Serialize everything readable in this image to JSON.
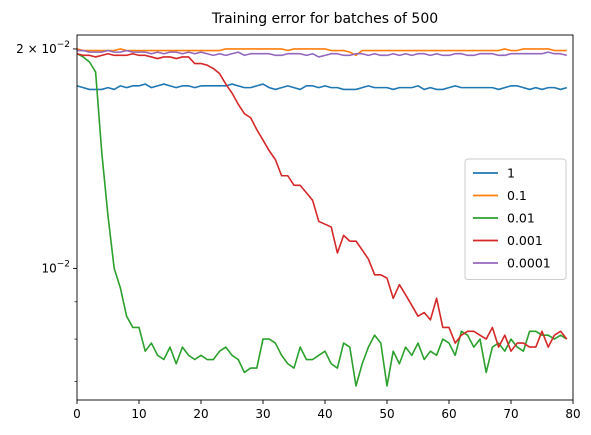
{
  "chart_data": {
    "type": "line",
    "title": "Training error for batches of 500",
    "xlabel": "",
    "ylabel": "",
    "xlim": [
      0,
      80
    ],
    "ylim": [
      0.0066,
      0.0209
    ],
    "yscale": "log",
    "xticks": [
      0,
      10,
      20,
      30,
      40,
      50,
      60,
      70,
      80
    ],
    "xtick_labels": [
      "0",
      "10",
      "20",
      "30",
      "40",
      "50",
      "60",
      "70",
      "80"
    ],
    "yticks": [
      {
        "value": 0.02,
        "base": "2 × 10",
        "exp": "−2"
      },
      {
        "value": 0.01,
        "base": "10",
        "exp": "−2"
      }
    ],
    "legend_position": "center-right",
    "series": [
      {
        "name": "1",
        "color": "#1f77b4",
        "values": [
          0.0178,
          0.0177,
          0.0176,
          0.0176,
          0.0176,
          0.0177,
          0.0176,
          0.0178,
          0.0177,
          0.0178,
          0.0178,
          0.0179,
          0.0177,
          0.0178,
          0.0179,
          0.0178,
          0.0177,
          0.0178,
          0.0178,
          0.0177,
          0.0178,
          0.0178,
          0.0178,
          0.0178,
          0.0178,
          0.0179,
          0.0178,
          0.0177,
          0.0177,
          0.0178,
          0.0179,
          0.0177,
          0.0176,
          0.0177,
          0.0178,
          0.0177,
          0.0176,
          0.0178,
          0.0178,
          0.0177,
          0.0178,
          0.0177,
          0.0177,
          0.0176,
          0.0176,
          0.0176,
          0.0177,
          0.0178,
          0.0177,
          0.0177,
          0.0177,
          0.0176,
          0.0177,
          0.0177,
          0.0177,
          0.0178,
          0.0176,
          0.0177,
          0.0176,
          0.0176,
          0.0177,
          0.0178,
          0.0177,
          0.0177,
          0.0177,
          0.0177,
          0.0177,
          0.0177,
          0.0176,
          0.0177,
          0.0178,
          0.0178,
          0.0177,
          0.0176,
          0.0177,
          0.0176,
          0.0177,
          0.0177,
          0.0176,
          0.0177
        ]
      },
      {
        "name": "0.1",
        "color": "#ff7f0e",
        "values": [
          0.02,
          0.0199,
          0.0199,
          0.0199,
          0.0199,
          0.0199,
          0.0199,
          0.02,
          0.0199,
          0.0199,
          0.0199,
          0.0199,
          0.0199,
          0.0199,
          0.0199,
          0.0199,
          0.0199,
          0.0199,
          0.0199,
          0.0199,
          0.0199,
          0.0199,
          0.0199,
          0.0199,
          0.02,
          0.02,
          0.02,
          0.02,
          0.02,
          0.02,
          0.02,
          0.02,
          0.02,
          0.02,
          0.0199,
          0.02,
          0.02,
          0.02,
          0.02,
          0.02,
          0.02,
          0.0199,
          0.0199,
          0.0199,
          0.0198,
          0.0196,
          0.0199,
          0.0199,
          0.0199,
          0.0199,
          0.0199,
          0.0199,
          0.0199,
          0.0199,
          0.0199,
          0.0199,
          0.0199,
          0.0199,
          0.0199,
          0.0199,
          0.0199,
          0.0199,
          0.0199,
          0.0199,
          0.0199,
          0.0199,
          0.0199,
          0.0199,
          0.0199,
          0.02,
          0.0199,
          0.0199,
          0.02,
          0.02,
          0.02,
          0.02,
          0.02,
          0.0199,
          0.0199,
          0.0199
        ]
      },
      {
        "name": "0.01",
        "color": "#2ca02c",
        "values": [
          0.0197,
          0.0195,
          0.0192,
          0.0186,
          0.0144,
          0.0118,
          0.01,
          0.0094,
          0.0086,
          0.0083,
          0.0083,
          0.0077,
          0.0079,
          0.0076,
          0.0075,
          0.0078,
          0.0074,
          0.0078,
          0.0076,
          0.0075,
          0.0076,
          0.0075,
          0.0075,
          0.0077,
          0.0078,
          0.0076,
          0.0075,
          0.0072,
          0.0073,
          0.0073,
          0.008,
          0.008,
          0.0079,
          0.0076,
          0.0074,
          0.0073,
          0.0078,
          0.0075,
          0.0075,
          0.0076,
          0.0077,
          0.0074,
          0.0073,
          0.0079,
          0.0078,
          0.0069,
          0.0074,
          0.0078,
          0.0081,
          0.0079,
          0.0069,
          0.0077,
          0.0074,
          0.0078,
          0.0076,
          0.0079,
          0.0075,
          0.0077,
          0.0076,
          0.008,
          0.0079,
          0.0076,
          0.0082,
          0.0081,
          0.0078,
          0.008,
          0.0072,
          0.0078,
          0.0079,
          0.0077,
          0.008,
          0.0078,
          0.0077,
          0.0082,
          0.0082,
          0.0081,
          0.0081,
          0.008,
          0.0081,
          0.008
        ]
      },
      {
        "name": "0.001",
        "color": "#d62728",
        "values": [
          0.0197,
          0.0196,
          0.0196,
          0.0195,
          0.0196,
          0.0197,
          0.0196,
          0.0196,
          0.0196,
          0.0197,
          0.0196,
          0.0196,
          0.0195,
          0.0194,
          0.0195,
          0.0195,
          0.0194,
          0.0195,
          0.0195,
          0.0191,
          0.0191,
          0.019,
          0.0188,
          0.0185,
          0.0179,
          0.0174,
          0.0168,
          0.0163,
          0.0161,
          0.0155,
          0.015,
          0.0145,
          0.0141,
          0.0134,
          0.0134,
          0.013,
          0.013,
          0.0127,
          0.0124,
          0.0116,
          0.0115,
          0.0114,
          0.0105,
          0.0111,
          0.0109,
          0.0109,
          0.0106,
          0.0103,
          0.0098,
          0.0098,
          0.0097,
          0.0091,
          0.0095,
          0.0092,
          0.0089,
          0.0086,
          0.0087,
          0.0085,
          0.0091,
          0.0083,
          0.0083,
          0.0079,
          0.0081,
          0.0082,
          0.0082,
          0.0081,
          0.008,
          0.0083,
          0.0078,
          0.0081,
          0.0077,
          0.0079,
          0.0079,
          0.0078,
          0.0078,
          0.0082,
          0.0078,
          0.0081,
          0.0082,
          0.008
        ]
      },
      {
        "name": "0.0001",
        "color": "#9467bd",
        "values": [
          0.0199,
          0.0199,
          0.0198,
          0.0198,
          0.0198,
          0.0199,
          0.0198,
          0.0198,
          0.0199,
          0.0198,
          0.0198,
          0.0198,
          0.0197,
          0.0198,
          0.0197,
          0.0198,
          0.0198,
          0.0197,
          0.0198,
          0.0197,
          0.0198,
          0.0197,
          0.0196,
          0.0197,
          0.0196,
          0.0197,
          0.0198,
          0.0196,
          0.0197,
          0.0197,
          0.0197,
          0.0197,
          0.0196,
          0.0196,
          0.0197,
          0.0197,
          0.0197,
          0.0196,
          0.0197,
          0.0195,
          0.0196,
          0.0197,
          0.0197,
          0.0196,
          0.0196,
          0.0197,
          0.0197,
          0.0196,
          0.0197,
          0.0196,
          0.0196,
          0.0197,
          0.0196,
          0.0197,
          0.0196,
          0.0197,
          0.0197,
          0.0196,
          0.0197,
          0.0196,
          0.0196,
          0.0197,
          0.0197,
          0.0196,
          0.0196,
          0.0197,
          0.0197,
          0.0197,
          0.0196,
          0.0196,
          0.0197,
          0.0197,
          0.0197,
          0.0197,
          0.0197,
          0.0197,
          0.0198,
          0.0197,
          0.0197,
          0.0196
        ]
      }
    ]
  }
}
